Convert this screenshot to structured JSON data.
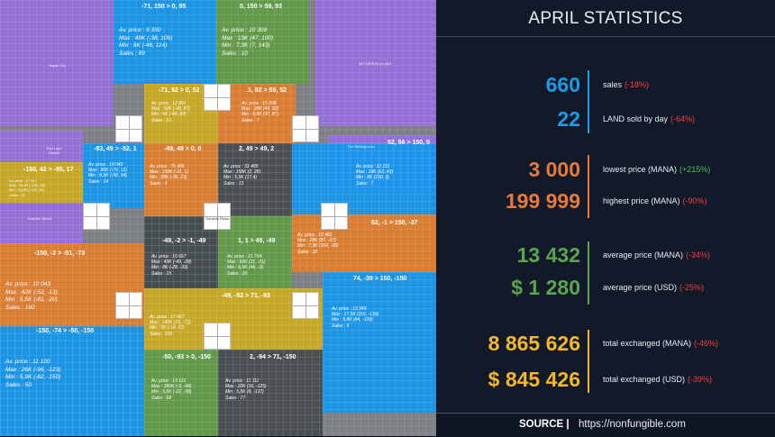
{
  "colors": {
    "blue": "#1e9be6",
    "orange": "#e8793a",
    "green": "#5aa64c",
    "yellow": "#f2b72d",
    "negative": "#ff3b3b",
    "positive": "#4fc25a"
  },
  "map": {
    "districts": {
      "vegas_city": "Vegas City",
      "aetheria": "AETHERIAN project",
      "red_light": "Red Light District",
      "fashion_street": "Fashion Street",
      "the_battleground": "The Battleground",
      "genesis_plaza": "Genesis Plaza"
    },
    "zones": [
      {
        "coord": "-71, 150 > 0, 95",
        "avg": "Av. price : 9 350",
        "max": "Max : 49K (-38, 109)",
        "min": "Min : 6K (-46, 114)",
        "sales": "Sales : 89"
      },
      {
        "coord": "0, 150 > 59, 93",
        "avg": "Av. price : 10 309",
        "max": "Max : 13K (47, 100)",
        "min": "Min : 7,3K (7, 143)",
        "sales": "Sales : 10"
      },
      {
        "coord": "-71, 92 > 0, 52",
        "avg": "Av. price : 12 891",
        "max": "Max : 52K (-48, 87)",
        "min": "Min : 6K (-46, 83)",
        "sales": "Sales : 21"
      },
      {
        "coord": "1, 92 > 59, 52",
        "avg": "Av. price : 15 008",
        "max": "Max : 28K (44, 82)",
        "min": "Min : 6,6K (37, 87)",
        "sales": "Sales : 7"
      },
      {
        "coord": "-83, 49 > -52, 1",
        "avg": "Av. price : 19 042",
        "max": "Max : 80K (-70, 12)",
        "min": "Min : 8,5K (-58, 34)",
        "sales": "Sales : 14"
      },
      {
        "coord": "-49, 49 > 0, 0",
        "avg": "Av. price : 75 499",
        "max": "Max : 199K (-31, 1)",
        "min": "Min : 28K (-36, 23)",
        "sales": "Sales : 4"
      },
      {
        "coord": "2, 49 > 49, 2",
        "avg": "Av. price : 31 405",
        "max": "Max : 158K (2, 28)",
        "min": "Min : 5,5K (17,4)",
        "sales": "Sales : 13"
      },
      {
        "coord": "52, 56 > 150, 0",
        "avg": "Av. price : 11 211",
        "max": "Max : 18K (62, 43)",
        "min": "Min : 8K (150, 3)",
        "sales": "Sales : 7"
      },
      {
        "coord": "-150, 42 > -95, 17",
        "avg": "Av. price : 17 417",
        "max": "Max : 34,9K (-150, 39)",
        "min": "Min : 10,8K (-145, 29)",
        "sales": "Sales : 51"
      },
      {
        "coord": "52, -1 > 150, -37",
        "avg": "Av. price : 10 482",
        "max": "Max : 28K (87, -37)",
        "min": "Min : 7,3K (104, -30)",
        "sales": "Sales : 32"
      },
      {
        "coord": "-49, -2 > -1, -49",
        "avg": "Av. price : 10 667",
        "max": "Max : 43K (-49, -28)",
        "min": "Min : 8K (-28, -33)",
        "sales": "Sales : 15"
      },
      {
        "coord": "1, 1 > 49, -49",
        "avg": "Av. price : 21 794",
        "max": "Max : 66K (11, -21)",
        "min": "Min : 6,5K (46, -2)",
        "sales": "Sales : 20"
      },
      {
        "coord": "-150, -2 > -51, -73",
        "avg": "Av. price : 10 043",
        "max": "Max : 42K (-52, -13)",
        "min": "Min : 5,5K (-81, -20)",
        "sales": "Sales : 160"
      },
      {
        "coord": "74, -39 > 150, -150",
        "avg": "Av. price : 13 349",
        "max": "Max : 17,5K (116, -139)",
        "min": "Min : 9,8K (84, -139)",
        "sales": "Sales : 6"
      },
      {
        "coord": "-49, -52 > 71, -93",
        "avg": "Av. price : 17 667",
        "max": "Max : 145K (15, -71)",
        "min": "Min : 5K (-14, 57)",
        "sales": "Sales : 100"
      },
      {
        "coord": "-150, -74 > -50, -150",
        "avg": "Av. price : 11 100",
        "max": "Max : 26K (-96, -123)",
        "min": "Min : 5,9K (-82, -150)",
        "sales": "Sales : 50"
      },
      {
        "coord": "-50, -93 > 0, -150",
        "avg": "Av. price : 13 121",
        "max": "Max : 180K (-3, -94)",
        "min": "Min : 5,5K (-22, -99)",
        "sales": "Sales : 68"
      },
      {
        "coord": "2, -94 > 71, -150",
        "avg": "Av. price : 11 111",
        "max": "Max : 22K (16, -125)",
        "min": "Min : 5,5K (8, -137)",
        "sales": "Sales : 77"
      }
    ]
  },
  "panel": {
    "title": "APRIL STATISTICS",
    "rows": [
      {
        "value": "660",
        "label": "sales",
        "change": "(-18%)",
        "trend": "negative",
        "color": "blue"
      },
      {
        "value": "22",
        "label": "LAND sold by day",
        "change": "(-64%)",
        "trend": "negative",
        "color": "blue"
      },
      {
        "value": "3 000",
        "label": "lowest price (MANA)",
        "change": "(+215%)",
        "trend": "positive",
        "color": "orange"
      },
      {
        "value": "199 999",
        "label": "highest price (MANA)",
        "change": "(-90%)",
        "trend": "negative",
        "color": "orange"
      },
      {
        "value": "13 432",
        "label": "average price (MANA)",
        "change": "(-34%)",
        "trend": "negative",
        "color": "green"
      },
      {
        "value": "$ 1 280",
        "label": "average price (USD)",
        "change": "(-25%)",
        "trend": "negative",
        "color": "green"
      },
      {
        "value": "8 865 626",
        "label": "total exchanged (MANA)",
        "change": "(-46%)",
        "trend": "negative",
        "color": "yellow"
      },
      {
        "value": "$ 845 426",
        "label": "total exchanged (USD)",
        "change": "(-39%)",
        "trend": "negative",
        "color": "yellow"
      }
    ],
    "footer": {
      "source_label": "SOURCE |",
      "url": "https://nonfungible.com"
    }
  }
}
